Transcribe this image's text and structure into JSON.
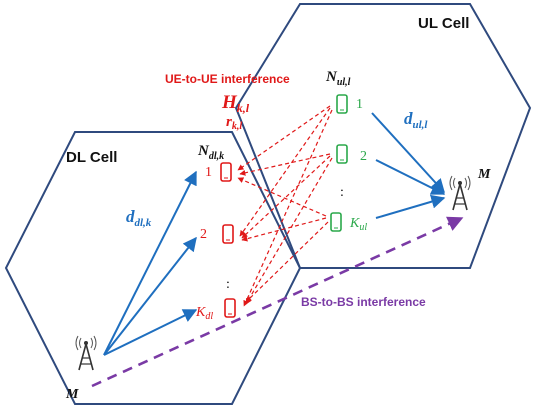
{
  "colors": {
    "cell_border": "#2f4a7e",
    "dl_arrow": "#1f6fbf",
    "ul_arrow": "#1f6fbf",
    "interference": "#e01818",
    "bs_interference": "#7a3aa5",
    "dl_ue": "#e01818",
    "ul_ue": "#2aa84a",
    "text_dark": "#111111",
    "text_red": "#e01818",
    "text_blue": "#1f6fbf",
    "text_green": "#2aa84a",
    "text_purple": "#7a3aa5"
  },
  "cells": {
    "ul_title": "UL Cell",
    "dl_title": "DL Cell"
  },
  "labels": {
    "ue_to_ue": "UE-to-UE interference",
    "h_main": "H",
    "h_sub": "k,l",
    "r_main": "r",
    "r_sub": "k,l",
    "n_ul_main": "N",
    "n_ul_sub": "ul,l",
    "n_dl_main": "N",
    "n_dl_sub": "dl,k",
    "d_ul_main": "d",
    "d_ul_sub": "ul,l",
    "d_dl_main": "d",
    "d_dl_sub": "dl,k",
    "bs_to_bs": "BS-to-BS interference",
    "bs_ul_antennas": "M",
    "bs_dl_antennas": "M"
  },
  "ul_users": [
    {
      "label": "1"
    },
    {
      "label": "2"
    },
    {
      "label_main": "K",
      "label_sub": "ul"
    }
  ],
  "dl_users": [
    {
      "label": "1"
    },
    {
      "label": "2"
    },
    {
      "label_main": "K",
      "label_sub": "dl"
    }
  ],
  "ellipsis": ":",
  "icons": [
    "base-station-icon",
    "smartphone-icon"
  ]
}
